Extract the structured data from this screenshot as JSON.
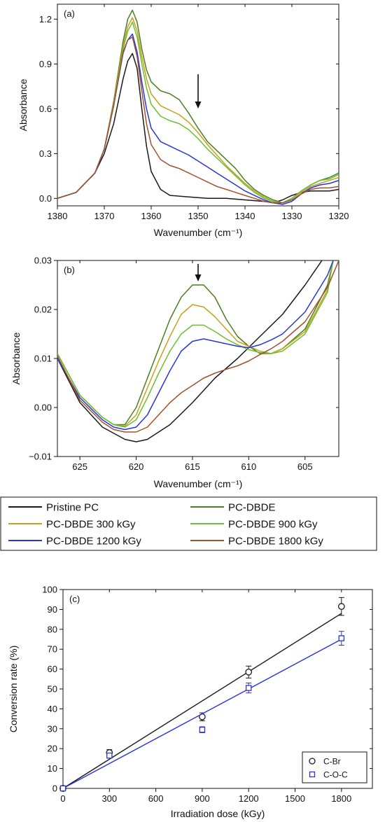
{
  "chart_data": [
    {
      "type": "line",
      "panel_label": "(a)",
      "xlabel": "Wavenumber (cm⁻¹)",
      "ylabel": "Absorbance",
      "xlim": [
        1380,
        1320
      ],
      "ylim": [
        -0.05,
        1.3
      ],
      "x_reversed": true,
      "xticks": [
        1380,
        1370,
        1360,
        1350,
        1340,
        1330,
        1320
      ],
      "yticks": [
        0.0,
        0.3,
        0.6,
        0.9,
        1.2
      ],
      "ytick_labels": [
        "0.0",
        "0.3",
        "0.6",
        "0.9",
        "1.2"
      ],
      "annotation": "down-arrow at 1350",
      "grid": false,
      "series": [
        {
          "name": "Pristine PC",
          "color": "#1a1a1a",
          "x": [
            1380,
            1376,
            1372,
            1370,
            1368,
            1366,
            1365,
            1364,
            1363,
            1362,
            1361,
            1360,
            1358,
            1356,
            1352,
            1348,
            1344,
            1340,
            1336,
            1334,
            1332,
            1330,
            1328,
            1326,
            1324,
            1322,
            1320
          ],
          "y": [
            0.0,
            0.04,
            0.17,
            0.3,
            0.5,
            0.8,
            0.92,
            0.97,
            0.87,
            0.6,
            0.35,
            0.18,
            0.06,
            0.02,
            0.01,
            0.0,
            0.0,
            -0.01,
            -0.02,
            -0.03,
            -0.01,
            0.02,
            0.04,
            0.05,
            0.05,
            0.05,
            0.06
          ]
        },
        {
          "name": "PC-DBDE",
          "color": "#4a7f1f",
          "x": [
            1380,
            1376,
            1372,
            1370,
            1368,
            1366,
            1365,
            1364,
            1363,
            1362,
            1361,
            1360,
            1358,
            1356,
            1354,
            1352,
            1350,
            1348,
            1346,
            1344,
            1342,
            1340,
            1338,
            1336,
            1334,
            1332,
            1330,
            1328,
            1326,
            1324,
            1322,
            1320
          ],
          "y": [
            0.0,
            0.04,
            0.17,
            0.33,
            0.65,
            1.05,
            1.2,
            1.26,
            1.18,
            1.0,
            0.86,
            0.78,
            0.72,
            0.7,
            0.66,
            0.57,
            0.47,
            0.38,
            0.32,
            0.26,
            0.2,
            0.12,
            0.06,
            0.02,
            -0.01,
            -0.03,
            0.0,
            0.05,
            0.09,
            0.12,
            0.14,
            0.17
          ]
        },
        {
          "name": "PC-DBDE 300 kGy",
          "color": "#c8a020",
          "x": [
            1380,
            1376,
            1372,
            1370,
            1368,
            1366,
            1365,
            1364,
            1363,
            1362,
            1361,
            1360,
            1358,
            1356,
            1354,
            1352,
            1350,
            1348,
            1346,
            1344,
            1342,
            1340,
            1338,
            1336,
            1334,
            1332,
            1330,
            1328,
            1326,
            1324,
            1322,
            1320
          ],
          "y": [
            0.0,
            0.04,
            0.17,
            0.33,
            0.64,
            1.02,
            1.15,
            1.21,
            1.12,
            0.95,
            0.8,
            0.7,
            0.62,
            0.59,
            0.56,
            0.51,
            0.44,
            0.36,
            0.29,
            0.22,
            0.16,
            0.1,
            0.05,
            0.01,
            -0.02,
            -0.03,
            0.0,
            0.04,
            0.08,
            0.1,
            0.12,
            0.14
          ]
        },
        {
          "name": "PC-DBDE 900 kGy",
          "color": "#6cc030",
          "x": [
            1380,
            1376,
            1372,
            1370,
            1368,
            1366,
            1365,
            1364,
            1363,
            1362,
            1361,
            1360,
            1358,
            1356,
            1354,
            1352,
            1350,
            1348,
            1346,
            1344,
            1342,
            1340,
            1338,
            1336,
            1334,
            1332,
            1330,
            1328,
            1326,
            1324,
            1322,
            1320
          ],
          "y": [
            0.0,
            0.04,
            0.17,
            0.33,
            0.63,
            1.0,
            1.12,
            1.18,
            1.08,
            0.9,
            0.74,
            0.63,
            0.55,
            0.52,
            0.5,
            0.46,
            0.4,
            0.33,
            0.27,
            0.21,
            0.15,
            0.09,
            0.04,
            0.0,
            -0.02,
            -0.03,
            0.0,
            0.05,
            0.09,
            0.12,
            0.13,
            0.16
          ]
        },
        {
          "name": "PC-DBDE 1200 kGy",
          "color": "#2a35d8",
          "x": [
            1380,
            1376,
            1372,
            1370,
            1368,
            1366,
            1365,
            1364,
            1363,
            1362,
            1361,
            1360,
            1358,
            1356,
            1354,
            1352,
            1350,
            1348,
            1346,
            1344,
            1342,
            1340,
            1338,
            1336,
            1334,
            1332,
            1330,
            1328,
            1326,
            1324,
            1322,
            1320
          ],
          "y": [
            0.0,
            0.04,
            0.17,
            0.33,
            0.62,
            0.97,
            1.06,
            1.1,
            0.98,
            0.78,
            0.6,
            0.47,
            0.38,
            0.35,
            0.32,
            0.29,
            0.25,
            0.21,
            0.17,
            0.13,
            0.09,
            0.05,
            0.02,
            -0.01,
            -0.03,
            -0.04,
            -0.02,
            0.03,
            0.07,
            0.09,
            0.1,
            0.12
          ]
        },
        {
          "name": "PC-DBDE 1800 kGy",
          "color": "#a0522d",
          "x": [
            1380,
            1376,
            1372,
            1370,
            1368,
            1366,
            1365,
            1364,
            1363,
            1362,
            1361,
            1360,
            1358,
            1356,
            1354,
            1352,
            1350,
            1348,
            1346,
            1344,
            1342,
            1340,
            1338,
            1336,
            1334,
            1332,
            1330,
            1328,
            1326,
            1324,
            1322,
            1320
          ],
          "y": [
            0.0,
            0.04,
            0.17,
            0.33,
            0.62,
            0.98,
            1.06,
            1.08,
            0.95,
            0.72,
            0.5,
            0.36,
            0.26,
            0.22,
            0.2,
            0.17,
            0.14,
            0.11,
            0.08,
            0.06,
            0.04,
            0.02,
            0.0,
            -0.02,
            -0.03,
            -0.03,
            -0.01,
            0.03,
            0.06,
            0.07,
            0.07,
            0.08
          ]
        }
      ]
    },
    {
      "type": "line",
      "panel_label": "(b)",
      "xlabel": "Wavenumber (cm⁻¹)",
      "ylabel": "Absorbance",
      "xlim": [
        627,
        602
      ],
      "ylim": [
        -0.01,
        0.03
      ],
      "x_reversed": true,
      "xticks": [
        625,
        620,
        615,
        610,
        605
      ],
      "yticks": [
        -0.01,
        0.0,
        0.01,
        0.02,
        0.03
      ],
      "ytick_labels": [
        "−0.01",
        "0.00",
        "0.01",
        "0.02",
        "0.03"
      ],
      "annotation": "down-arrow at 615",
      "grid": false,
      "series": [
        {
          "name": "Pristine PC",
          "color": "#1a1a1a",
          "x": [
            627,
            625,
            623,
            621,
            620,
            619,
            617,
            615,
            613,
            611,
            609,
            607,
            605,
            603.5
          ],
          "y": [
            0.01,
            0.001,
            -0.004,
            -0.0065,
            -0.007,
            -0.0065,
            -0.0035,
            0.001,
            0.006,
            0.01,
            0.0145,
            0.019,
            0.025,
            0.03
          ]
        },
        {
          "name": "PC-DBDE",
          "color": "#4a7f1f",
          "x": [
            627,
            625,
            623,
            622,
            621,
            620,
            619,
            618,
            617,
            616,
            615,
            614,
            613,
            612,
            611,
            610,
            609,
            608,
            607,
            605,
            603,
            602.5
          ],
          "y": [
            0.011,
            0.0025,
            -0.002,
            -0.0035,
            -0.0035,
            0.0,
            0.006,
            0.012,
            0.018,
            0.0225,
            0.025,
            0.025,
            0.0225,
            0.018,
            0.0145,
            0.0125,
            0.011,
            0.011,
            0.012,
            0.016,
            0.025,
            0.03
          ]
        },
        {
          "name": "PC-DBDE 300 kGy",
          "color": "#c8a020",
          "x": [
            627,
            625,
            623,
            622,
            621,
            620,
            619,
            618,
            617,
            616,
            615,
            614,
            613,
            612,
            611,
            610,
            609,
            608,
            607,
            605,
            603,
            602.5
          ],
          "y": [
            0.011,
            0.0025,
            -0.002,
            -0.0035,
            -0.0038,
            -0.0015,
            0.004,
            0.0095,
            0.0145,
            0.019,
            0.021,
            0.0205,
            0.0185,
            0.016,
            0.0135,
            0.0125,
            0.0115,
            0.011,
            0.012,
            0.0155,
            0.024,
            0.03
          ]
        },
        {
          "name": "PC-DBDE 900 kGy",
          "color": "#6cc030",
          "x": [
            627,
            625,
            623,
            622,
            621,
            620,
            619,
            618,
            617,
            616,
            615,
            614,
            613,
            612,
            611,
            610,
            609,
            608,
            607,
            605,
            603,
            602.5
          ],
          "y": [
            0.011,
            0.0025,
            -0.002,
            -0.0035,
            -0.004,
            -0.0025,
            0.002,
            0.007,
            0.0115,
            0.015,
            0.0168,
            0.0168,
            0.0155,
            0.014,
            0.0128,
            0.0118,
            0.0112,
            0.011,
            0.0115,
            0.015,
            0.0235,
            0.03
          ]
        },
        {
          "name": "PC-DBDE 1200 kGy",
          "color": "#2a35d8",
          "x": [
            627,
            625,
            623,
            622,
            621,
            620,
            619,
            618,
            617,
            616,
            615,
            614,
            613,
            612,
            611,
            610,
            609,
            608,
            607,
            605,
            603,
            602.5
          ],
          "y": [
            0.01,
            0.002,
            -0.0025,
            -0.004,
            -0.0045,
            -0.004,
            -0.0015,
            0.003,
            0.0075,
            0.0115,
            0.0135,
            0.014,
            0.0135,
            0.013,
            0.0125,
            0.0122,
            0.0128,
            0.0138,
            0.015,
            0.0195,
            0.027,
            0.03
          ]
        },
        {
          "name": "PC-DBDE 1800 kGy",
          "color": "#a0522d",
          "x": [
            627,
            625,
            623,
            622,
            621,
            620,
            619,
            618,
            617,
            616,
            615,
            614,
            613,
            612,
            611,
            610,
            609,
            608,
            607,
            605,
            603,
            602
          ],
          "y": [
            0.0105,
            0.0015,
            -0.003,
            -0.0045,
            -0.005,
            -0.005,
            -0.004,
            -0.0015,
            0.001,
            0.003,
            0.0045,
            0.006,
            0.007,
            0.0078,
            0.0085,
            0.0095,
            0.0108,
            0.012,
            0.0135,
            0.0175,
            0.0245,
            0.03
          ]
        }
      ]
    },
    {
      "type": "scatter",
      "panel_label": "(c)",
      "xlabel": "Irradiation dose (kGy)",
      "ylabel": "Conversion rate (%)",
      "xlim": [
        0,
        2000
      ],
      "ylim": [
        0,
        100
      ],
      "xticks": [
        0,
        300,
        600,
        900,
        1200,
        1500,
        1800
      ],
      "yticks": [
        0,
        10,
        20,
        30,
        40,
        50,
        60,
        70,
        80,
        90,
        100
      ],
      "legend_position": "bottom-right",
      "grid": false,
      "series": [
        {
          "name": "C-Br",
          "marker": "circle",
          "color": "#1a1a1a",
          "x": [
            0,
            300,
            900,
            1200,
            1800
          ],
          "y": [
            0,
            18,
            36,
            58.5,
            91.5
          ],
          "err": [
            0,
            1.5,
            2,
            3,
            4.5
          ],
          "fit": [
            [
              0,
              0
            ],
            [
              1800,
              88
            ]
          ]
        },
        {
          "name": "C-O-C",
          "marker": "square",
          "color": "#2a35d8",
          "x": [
            0,
            300,
            900,
            1200,
            1800
          ],
          "y": [
            0,
            16.5,
            29.5,
            50.5,
            75.5
          ],
          "err": [
            0,
            1.2,
            1.5,
            2.5,
            3.5
          ],
          "fit": [
            [
              0,
              0
            ],
            [
              1800,
              75
            ]
          ]
        }
      ]
    }
  ],
  "legend": [
    {
      "name": "Pristine PC",
      "color": "#1a1a1a"
    },
    {
      "name": "PC-DBDE",
      "color": "#4a7f1f"
    },
    {
      "name": "PC-DBDE 300 kGy",
      "color": "#c8a020"
    },
    {
      "name": "PC-DBDE 900 kGy",
      "color": "#6cc030"
    },
    {
      "name": "PC-DBDE 1200 kGy",
      "color": "#2a35d8"
    },
    {
      "name": "PC-DBDE 1800 kGy",
      "color": "#a0522d"
    }
  ]
}
